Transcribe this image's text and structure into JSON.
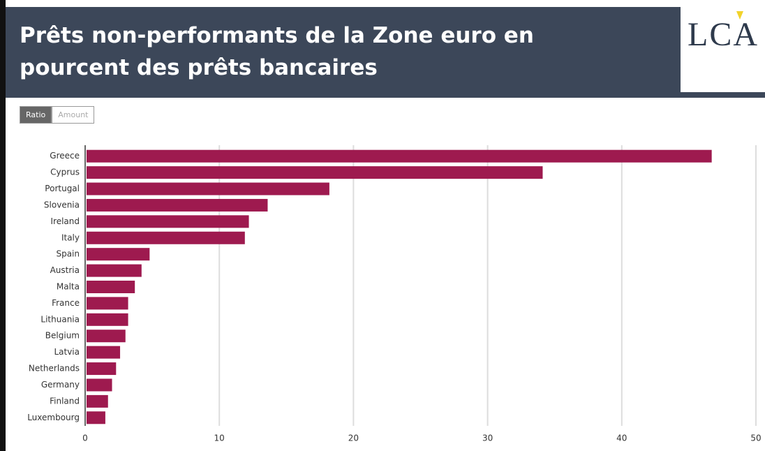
{
  "header": {
    "title": "Prêts non-performants de la Zone euro en pourcent des prêts bancaires",
    "logo": "LCA"
  },
  "toggle": {
    "options": [
      "Ratio",
      "Amount"
    ],
    "active": 0
  },
  "chart_data": {
    "type": "bar",
    "orientation": "horizontal",
    "categories": [
      "Greece",
      "Cyprus",
      "Portugal",
      "Slovenia",
      "Ireland",
      "Italy",
      "Spain",
      "Austria",
      "Malta",
      "France",
      "Lithuania",
      "Belgium",
      "Latvia",
      "Netherlands",
      "Germany",
      "Finland",
      "Luxembourg"
    ],
    "values": [
      46.6,
      34.0,
      18.1,
      13.5,
      12.1,
      11.8,
      4.7,
      4.1,
      3.6,
      3.1,
      3.1,
      2.9,
      2.5,
      2.2,
      1.9,
      1.6,
      1.4
    ],
    "color": "#9e1a4f",
    "xlim": [
      0,
      50
    ],
    "xticks": [
      0,
      10,
      20,
      30,
      40,
      50
    ],
    "grid": true
  }
}
